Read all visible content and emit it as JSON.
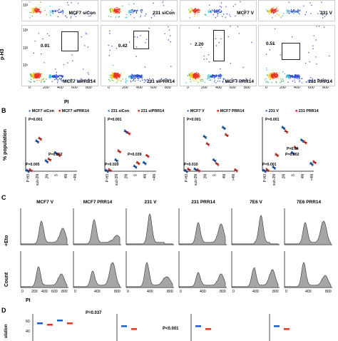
{
  "panel_labels": {
    "A": "A",
    "B": "B",
    "C": "C",
    "D": "D"
  },
  "colors": {
    "blue": "#1f5fc4",
    "red": "#e8352a",
    "black": "#111111",
    "hist_fill": "#a6a6a6"
  },
  "flow": {
    "y_title": "p-H3",
    "x_title": "PI",
    "y_ticks": [
      "10³",
      "10²",
      "10¹"
    ],
    "x_ticks": [
      "0",
      "200",
      "400",
      "600",
      "800"
    ],
    "top_row_labels": [
      "MCF7 siCon",
      "231 siCon",
      "MCF7 V",
      "231 V"
    ],
    "bottom_row": [
      {
        "label": "MCF7 siPRR14",
        "pct": "0.91"
      },
      {
        "label": "231 siPRR14",
        "pct": "0.42"
      },
      {
        "label": "MCF7 PRR14",
        "pct": "2.20"
      },
      {
        "label": "231 PRR14",
        "pct": "0.51"
      }
    ]
  },
  "panelB": {
    "y_title": "% population",
    "panels": [
      {
        "legend_a": "MCF7 siCon",
        "legend_b": "MCF7 siPRR14",
        "pvals": [
          "P=0.001",
          "P=0.005",
          "P=0.002"
        ]
      },
      {
        "legend_a": "231 siCon",
        "legend_b": "231 siPRR14",
        "pvals": [
          "P=0.001",
          "P=0.020",
          "P=0.039"
        ]
      },
      {
        "legend_a": "MCF7 V",
        "legend_b": "MCF7 PRR14",
        "pvals": [
          "P=0.001",
          "P=0.010"
        ]
      },
      {
        "legend_a": "231 V",
        "legend_b": "231 PRR14",
        "pvals": [
          "P=0.001",
          "P=0.001",
          "P=0.002",
          "P=0.04"
        ]
      }
    ],
    "x_cats": [
      "P-H3",
      "sub-2N",
      "2N",
      "S",
      "4N",
      ">4N"
    ]
  },
  "panelC": {
    "titles": [
      "MCF7 V",
      "MCF7 PRR14",
      "231 V",
      "231 PRR14",
      "7E6 V",
      "7E6 PRR14"
    ],
    "row1_label": "+Eto",
    "y_title": "Count",
    "x_title": "PI",
    "x_ticks": [
      "0",
      "200",
      "400",
      "600",
      "800"
    ]
  },
  "panelD": {
    "y_title": "ulation",
    "pvals": [
      "P=0.037",
      "P<0.001"
    ],
    "ticks": [
      "60",
      "40"
    ]
  }
}
